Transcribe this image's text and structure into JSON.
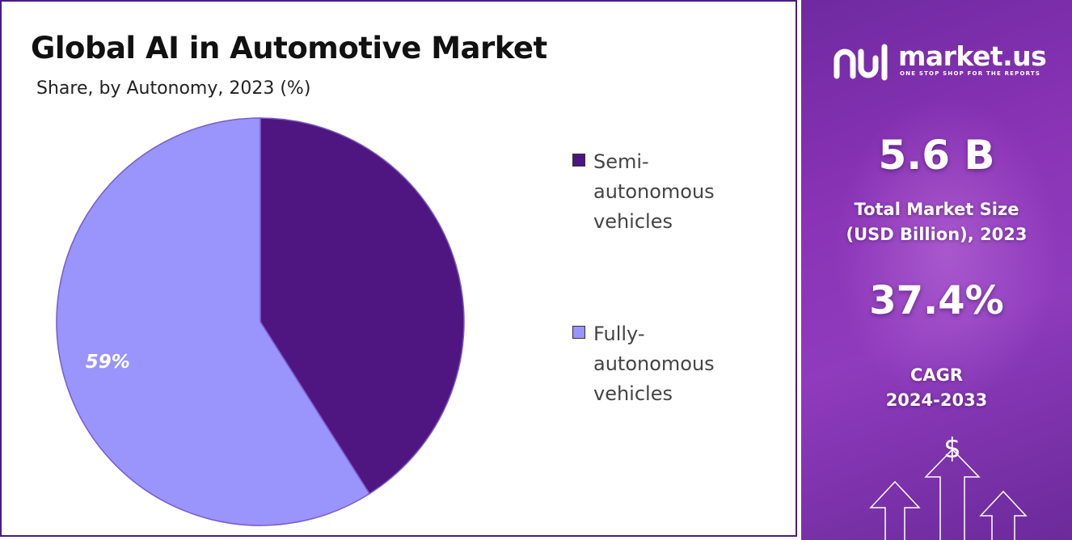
{
  "chart_data": {
    "type": "pie",
    "title": "Global AI in Automotive Market",
    "subtitle": "Share, by Autonomy, 2023 (%)",
    "slices": [
      {
        "label": "Semi-autonomous vehicles",
        "legend_lines": [
          "Semi-",
          "autonomous",
          "vehicles"
        ],
        "value": 41,
        "color": "#4f1682",
        "data_label": ""
      },
      {
        "label": "Fully-autonomous vehicles",
        "legend_lines": [
          "Fully-",
          "autonomous",
          "vehicles"
        ],
        "value": 59,
        "color": "#9a94fd",
        "data_label": "59%"
      }
    ],
    "legend_position": "right"
  },
  "side_panel": {
    "brand_name": "market.us",
    "brand_tagline": "ONE STOP SHOP FOR THE REPORTS",
    "market_size_value": "5.6 B",
    "market_size_label_lines": [
      "Total Market Size",
      "(USD Billion), 2023"
    ],
    "cagr_value": "37.4%",
    "cagr_label_lines": [
      "CAGR",
      "2024-2033"
    ],
    "decor_symbol": "$",
    "background_colors": [
      "#6f2aa0",
      "#8f3bbd"
    ]
  },
  "icons": {
    "brand_logo": "market-us-logo-icon",
    "dollar_arrows": "dollar-growth-arrows-icon"
  }
}
